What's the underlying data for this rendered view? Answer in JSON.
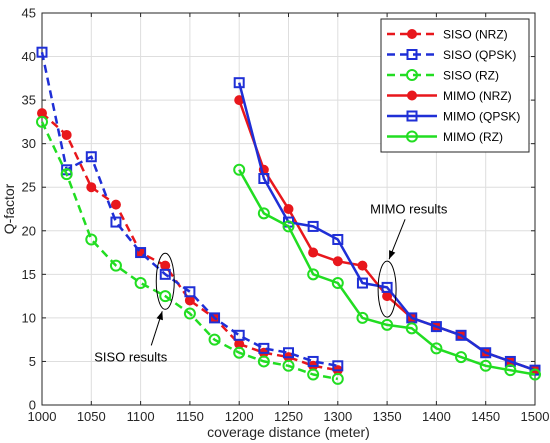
{
  "chart_data": {
    "type": "line",
    "xlabel": "coverage distance (meter)",
    "ylabel": "Q-factor",
    "xlim": [
      1000,
      1500
    ],
    "ylim": [
      0,
      45
    ],
    "xticks": [
      1000,
      1050,
      1100,
      1150,
      1200,
      1250,
      1300,
      1350,
      1400,
      1450,
      1500
    ],
    "yticks": [
      0,
      5,
      10,
      15,
      20,
      25,
      30,
      35,
      40,
      45
    ],
    "grid": true,
    "legend_position": "top-right",
    "series": [
      {
        "name": "SISO (NRZ)",
        "color": "#e8171c",
        "line_style": "dashed",
        "marker": "circle-filled",
        "x": [
          1000,
          1025,
          1050,
          1075,
          1100,
          1125,
          1150,
          1175,
          1200,
          1225,
          1250,
          1275,
          1300
        ],
        "y": [
          33.5,
          31,
          25,
          23,
          17.5,
          16,
          12,
          10,
          7,
          6,
          5.5,
          4.5,
          4
        ]
      },
      {
        "name": "SISO (QPSK)",
        "color": "#1f2fd6",
        "line_style": "dashed",
        "marker": "square-open",
        "x": [
          1000,
          1025,
          1050,
          1075,
          1100,
          1125,
          1150,
          1175,
          1200,
          1225,
          1250,
          1275,
          1300
        ],
        "y": [
          40.5,
          27,
          28.5,
          21,
          17.5,
          15,
          13,
          10,
          8,
          6.5,
          6,
          5,
          4.5
        ]
      },
      {
        "name": "SISO (RZ)",
        "color": "#22dd22",
        "line_style": "dashed",
        "marker": "circle-open",
        "x": [
          1000,
          1025,
          1050,
          1075,
          1100,
          1125,
          1150,
          1175,
          1200,
          1225,
          1250,
          1275,
          1300
        ],
        "y": [
          32.5,
          26.5,
          19,
          16,
          14,
          12.5,
          10.5,
          7.5,
          6,
          5,
          4.5,
          3.5,
          3
        ]
      },
      {
        "name": "MIMO (NRZ)",
        "color": "#e8171c",
        "line_style": "solid",
        "marker": "circle-filled",
        "x": [
          1200,
          1225,
          1250,
          1275,
          1300,
          1325,
          1350,
          1375,
          1400,
          1425,
          1450,
          1475,
          1500
        ],
        "y": [
          35,
          27,
          22.5,
          17.5,
          16.5,
          16,
          12.5,
          10,
          9,
          8,
          6,
          5,
          4
        ]
      },
      {
        "name": "MIMO (QPSK)",
        "color": "#1f2fd6",
        "line_style": "solid",
        "marker": "square-open",
        "x": [
          1200,
          1225,
          1250,
          1275,
          1300,
          1325,
          1350,
          1375,
          1400,
          1425,
          1450,
          1475,
          1500
        ],
        "y": [
          37,
          26,
          21,
          20.5,
          19,
          14,
          13.5,
          10,
          9,
          8,
          6,
          5,
          4
        ]
      },
      {
        "name": "MIMO (RZ)",
        "color": "#22dd22",
        "line_style": "solid",
        "marker": "circle-open",
        "x": [
          1200,
          1225,
          1250,
          1275,
          1300,
          1325,
          1350,
          1375,
          1400,
          1425,
          1450,
          1475,
          1500
        ],
        "y": [
          27,
          22,
          20.5,
          15,
          14,
          10,
          9.2,
          8.8,
          6.5,
          5.5,
          4.5,
          4,
          3.5
        ]
      }
    ],
    "annotations": [
      {
        "text": "SISO results",
        "ellipse_center": [
          1125,
          14.2
        ],
        "text_at": [
          1090,
          5
        ]
      },
      {
        "text": "MIMO results",
        "ellipse_center": [
          1350,
          13.3
        ],
        "text_at": [
          1372,
          22
        ]
      }
    ]
  }
}
